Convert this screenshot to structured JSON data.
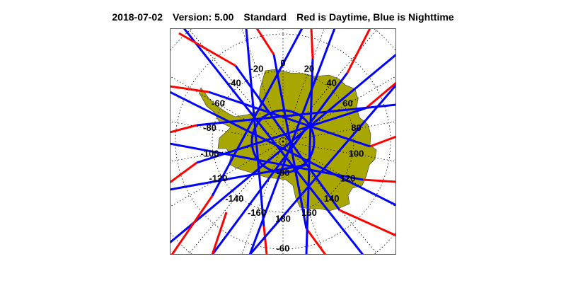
{
  "header": {
    "date": "2018-07-02",
    "version": "Version: 5.00",
    "product": "Standard",
    "legend_text": "Red is Daytime, Blue is Nighttime"
  },
  "map": {
    "projection": "south-polar-stereographic",
    "longitude_labels": [
      "0",
      "20",
      "40",
      "60",
      "80",
      "100",
      "120",
      "140",
      "160",
      "180",
      "-160",
      "-140",
      "-120",
      "-100",
      "-80",
      "-60",
      "-40",
      "-20"
    ],
    "latitude_labels": [
      "-80",
      "-60"
    ],
    "colors": {
      "day": "#ff0000",
      "night": "#0000ff",
      "land": "#a8a600",
      "grid": "#000000",
      "frame": "#555555"
    }
  }
}
